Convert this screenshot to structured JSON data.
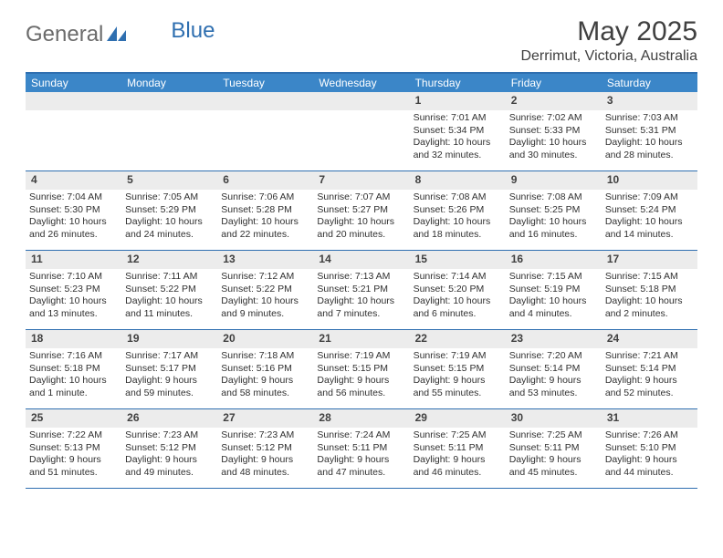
{
  "brand": {
    "part1": "General",
    "part2": "Blue"
  },
  "title": "May 2025",
  "location": "Derrimut, Victoria, Australia",
  "colors": {
    "header_bar": "#3b86c8",
    "border": "#2f6fb0",
    "daynum_bg": "#ececec",
    "text": "#404040",
    "logo_gray": "#6b6b6b"
  },
  "day_names": [
    "Sunday",
    "Monday",
    "Tuesday",
    "Wednesday",
    "Thursday",
    "Friday",
    "Saturday"
  ],
  "weeks": [
    [
      null,
      null,
      null,
      null,
      {
        "n": "1",
        "sr": "7:01 AM",
        "ss": "5:34 PM",
        "dl": "10 hours and 32 minutes."
      },
      {
        "n": "2",
        "sr": "7:02 AM",
        "ss": "5:33 PM",
        "dl": "10 hours and 30 minutes."
      },
      {
        "n": "3",
        "sr": "7:03 AM",
        "ss": "5:31 PM",
        "dl": "10 hours and 28 minutes."
      }
    ],
    [
      {
        "n": "4",
        "sr": "7:04 AM",
        "ss": "5:30 PM",
        "dl": "10 hours and 26 minutes."
      },
      {
        "n": "5",
        "sr": "7:05 AM",
        "ss": "5:29 PM",
        "dl": "10 hours and 24 minutes."
      },
      {
        "n": "6",
        "sr": "7:06 AM",
        "ss": "5:28 PM",
        "dl": "10 hours and 22 minutes."
      },
      {
        "n": "7",
        "sr": "7:07 AM",
        "ss": "5:27 PM",
        "dl": "10 hours and 20 minutes."
      },
      {
        "n": "8",
        "sr": "7:08 AM",
        "ss": "5:26 PM",
        "dl": "10 hours and 18 minutes."
      },
      {
        "n": "9",
        "sr": "7:08 AM",
        "ss": "5:25 PM",
        "dl": "10 hours and 16 minutes."
      },
      {
        "n": "10",
        "sr": "7:09 AM",
        "ss": "5:24 PM",
        "dl": "10 hours and 14 minutes."
      }
    ],
    [
      {
        "n": "11",
        "sr": "7:10 AM",
        "ss": "5:23 PM",
        "dl": "10 hours and 13 minutes."
      },
      {
        "n": "12",
        "sr": "7:11 AM",
        "ss": "5:22 PM",
        "dl": "10 hours and 11 minutes."
      },
      {
        "n": "13",
        "sr": "7:12 AM",
        "ss": "5:22 PM",
        "dl": "10 hours and 9 minutes."
      },
      {
        "n": "14",
        "sr": "7:13 AM",
        "ss": "5:21 PM",
        "dl": "10 hours and 7 minutes."
      },
      {
        "n": "15",
        "sr": "7:14 AM",
        "ss": "5:20 PM",
        "dl": "10 hours and 6 minutes."
      },
      {
        "n": "16",
        "sr": "7:15 AM",
        "ss": "5:19 PM",
        "dl": "10 hours and 4 minutes."
      },
      {
        "n": "17",
        "sr": "7:15 AM",
        "ss": "5:18 PM",
        "dl": "10 hours and 2 minutes."
      }
    ],
    [
      {
        "n": "18",
        "sr": "7:16 AM",
        "ss": "5:18 PM",
        "dl": "10 hours and 1 minute."
      },
      {
        "n": "19",
        "sr": "7:17 AM",
        "ss": "5:17 PM",
        "dl": "9 hours and 59 minutes."
      },
      {
        "n": "20",
        "sr": "7:18 AM",
        "ss": "5:16 PM",
        "dl": "9 hours and 58 minutes."
      },
      {
        "n": "21",
        "sr": "7:19 AM",
        "ss": "5:15 PM",
        "dl": "9 hours and 56 minutes."
      },
      {
        "n": "22",
        "sr": "7:19 AM",
        "ss": "5:15 PM",
        "dl": "9 hours and 55 minutes."
      },
      {
        "n": "23",
        "sr": "7:20 AM",
        "ss": "5:14 PM",
        "dl": "9 hours and 53 minutes."
      },
      {
        "n": "24",
        "sr": "7:21 AM",
        "ss": "5:14 PM",
        "dl": "9 hours and 52 minutes."
      }
    ],
    [
      {
        "n": "25",
        "sr": "7:22 AM",
        "ss": "5:13 PM",
        "dl": "9 hours and 51 minutes."
      },
      {
        "n": "26",
        "sr": "7:23 AM",
        "ss": "5:12 PM",
        "dl": "9 hours and 49 minutes."
      },
      {
        "n": "27",
        "sr": "7:23 AM",
        "ss": "5:12 PM",
        "dl": "9 hours and 48 minutes."
      },
      {
        "n": "28",
        "sr": "7:24 AM",
        "ss": "5:11 PM",
        "dl": "9 hours and 47 minutes."
      },
      {
        "n": "29",
        "sr": "7:25 AM",
        "ss": "5:11 PM",
        "dl": "9 hours and 46 minutes."
      },
      {
        "n": "30",
        "sr": "7:25 AM",
        "ss": "5:11 PM",
        "dl": "9 hours and 45 minutes."
      },
      {
        "n": "31",
        "sr": "7:26 AM",
        "ss": "5:10 PM",
        "dl": "9 hours and 44 minutes."
      }
    ]
  ],
  "labels": {
    "sunrise": "Sunrise: ",
    "sunset": "Sunset: ",
    "daylight": "Daylight: "
  }
}
